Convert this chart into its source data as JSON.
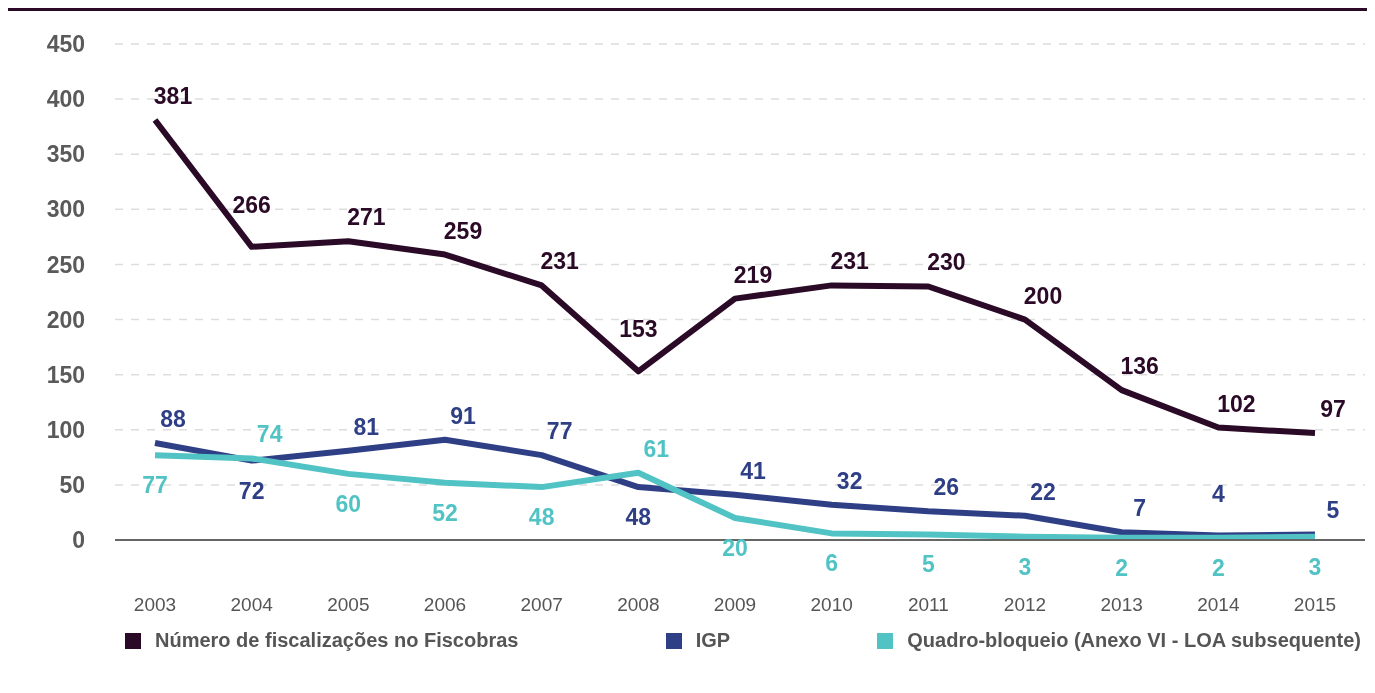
{
  "chart_data": {
    "type": "line",
    "categories": [
      "2003",
      "2004",
      "2005",
      "2006",
      "2007",
      "2008",
      "2009",
      "2010",
      "2011",
      "2012",
      "2013",
      "2014",
      "2015"
    ],
    "series": [
      {
        "name": "Número de fiscalizações no Fiscobras",
        "color": "#2a0a26",
        "values": [
          381,
          266,
          271,
          259,
          231,
          153,
          219,
          231,
          230,
          200,
          136,
          102,
          97
        ]
      },
      {
        "name": "IGP",
        "color": "#2f3f86",
        "values": [
          88,
          72,
          81,
          91,
          77,
          48,
          41,
          32,
          26,
          22,
          7,
          4,
          5
        ]
      },
      {
        "name": "Quadro-bloqueio (Anexo VI - LOA subsequente)",
        "color": "#52c3c4",
        "values": [
          77,
          74,
          60,
          52,
          48,
          61,
          20,
          6,
          5,
          3,
          2,
          2,
          3
        ]
      }
    ],
    "ylim": [
      0,
      450
    ],
    "yticks": [
      0,
      50,
      100,
      150,
      200,
      250,
      300,
      350,
      400,
      450
    ],
    "grid": "y",
    "legend": "bottom",
    "data_labels": true
  }
}
